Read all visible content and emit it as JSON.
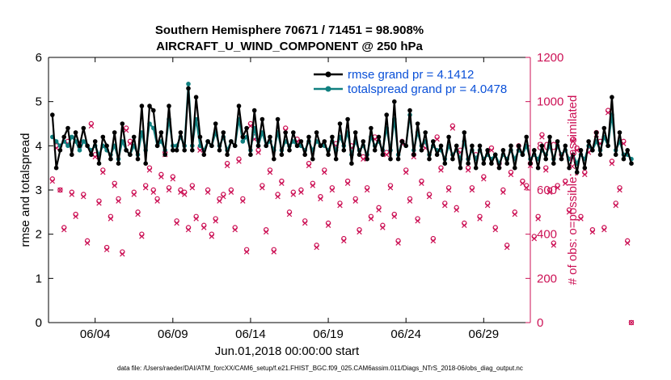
{
  "colors": {
    "rmse": "#000000",
    "totalspread": "#108080",
    "obs": "#cc1155",
    "legend_text": "#0a50d8",
    "axis": "#000000"
  },
  "chart_data": {
    "type": "line",
    "title": "Southern Hemisphere 70671 / 71451 = 98.908%",
    "subtitle": "AIRCRAFT_U_WIND_COMPONENT @ 250 hPa",
    "xlabel": "Jun.01,2018 00:00:00 start",
    "ylabel": "rmse and totalspread",
    "y2label": "# of obs: o=possible; ×=assimilated",
    "xlim": [
      1,
      32
    ],
    "ylim": [
      0,
      6
    ],
    "y2lim": [
      0,
      1200
    ],
    "xticks": [
      4,
      9,
      14,
      19,
      24,
      29
    ],
    "xtick_labels": [
      "06/04",
      "06/09",
      "06/14",
      "06/19",
      "06/24",
      "06/29"
    ],
    "yticks": [
      "0",
      "1",
      "2",
      "3",
      "4",
      "5",
      "6"
    ],
    "y2ticks": [
      "0",
      "200",
      "400",
      "600",
      "800",
      "1000",
      "1200"
    ],
    "grid": false,
    "legend_location": "top-right",
    "footer": "data file: /Users/raeder/DAI/ATM_forcXX/CAM6_setup/f.e21.FHIST_BGC.f09_025.CAM6assim.011/Diags_NTrS_2018-06/obs_diag_output.nc",
    "series": [
      {
        "name": "rmse grand pr = 4.1412",
        "x_start": 1.25,
        "x_step": 0.25,
        "values": [
          4.7,
          3.5,
          3.9,
          4.2,
          4.4,
          3.8,
          4.3,
          4.0,
          4.4,
          4.0,
          3.8,
          4.1,
          3.6,
          4.2,
          4.0,
          3.7,
          4.3,
          3.6,
          4.5,
          3.9,
          3.8,
          4.2,
          3.7,
          4.9,
          3.6,
          4.9,
          4.8,
          4.0,
          4.3,
          3.8,
          4.9,
          3.9,
          3.9,
          4.3,
          3.9,
          5.3,
          3.9,
          5.1,
          4.2,
          3.8,
          4.1,
          4.0,
          4.5,
          3.9,
          4.3,
          3.8,
          4.1,
          4.0,
          4.9,
          4.2,
          4.4,
          3.8,
          4.8,
          4.0,
          4.6,
          4.0,
          4.2,
          3.7,
          4.6,
          3.8,
          4.3,
          3.9,
          4.3,
          4.0,
          4.1,
          3.8,
          4.2,
          3.7,
          4.3,
          4.0,
          4.1,
          3.8,
          4.2,
          3.7,
          4.5,
          3.9,
          4.6,
          3.6,
          4.3,
          3.8,
          4.1,
          3.7,
          4.4,
          3.9,
          4.2,
          3.8,
          4.7,
          3.7,
          5.0,
          3.7,
          4.1,
          4.0,
          4.8,
          3.8,
          4.5,
          3.9,
          4.3,
          3.7,
          4.1,
          3.8,
          4.0,
          3.6,
          4.2,
          3.7,
          4.0,
          3.5,
          4.3,
          3.6,
          4.0,
          3.5,
          4.0,
          3.6,
          3.9,
          3.6,
          3.8,
          3.5,
          3.9,
          3.6,
          4.0,
          3.5,
          4.0,
          3.8,
          4.2,
          3.6,
          3.9,
          3.5,
          4.0,
          3.7,
          4.2,
          3.6,
          4.1,
          3.7,
          4.0,
          3.5,
          3.8,
          3.4,
          3.9,
          3.5,
          4.1,
          3.9,
          4.3,
          3.8,
          4.4,
          4.0,
          5.1,
          3.8,
          4.3,
          3.7,
          3.9,
          3.6
        ]
      },
      {
        "name": "totalspread grand pr = 4.0478",
        "x_start": 1.25,
        "x_step": 0.25,
        "values": [
          4.2,
          4.1,
          4.0,
          4.1,
          4.0,
          4.2,
          4.1,
          3.9,
          4.1,
          4.0,
          3.9,
          4.0,
          3.8,
          4.0,
          3.9,
          3.8,
          4.0,
          3.7,
          4.1,
          3.9,
          3.8,
          4.0,
          3.8,
          4.3,
          3.9,
          4.5,
          4.4,
          4.0,
          4.1,
          3.9,
          4.6,
          4.0,
          4.0,
          4.2,
          4.0,
          5.4,
          4.0,
          4.6,
          4.0,
          3.9,
          4.1,
          4.0,
          4.3,
          4.0,
          4.2,
          3.9,
          4.1,
          4.0,
          4.6,
          4.1,
          4.2,
          3.9,
          4.4,
          4.0,
          4.3,
          4.0,
          4.1,
          3.9,
          4.3,
          3.9,
          4.1,
          4.0,
          4.1,
          4.0,
          4.0,
          3.9,
          4.1,
          3.9,
          4.1,
          4.0,
          4.0,
          3.9,
          4.1,
          3.9,
          4.2,
          4.0,
          4.3,
          3.8,
          4.1,
          3.9,
          4.0,
          3.8,
          4.2,
          4.0,
          4.1,
          3.9,
          4.4,
          3.9,
          4.6,
          3.8,
          4.1,
          4.0,
          4.7,
          3.9,
          4.3,
          4.0,
          4.1,
          3.8,
          4.0,
          3.9,
          3.9,
          3.7,
          4.0,
          3.8,
          3.9,
          3.7,
          4.1,
          3.7,
          3.9,
          3.7,
          3.9,
          3.7,
          3.8,
          3.7,
          3.8,
          3.6,
          3.8,
          3.7,
          3.9,
          3.7,
          3.9,
          3.8,
          4.0,
          3.7,
          3.8,
          3.7,
          3.9,
          3.8,
          4.0,
          3.7,
          4.0,
          3.8,
          3.9,
          3.7,
          3.8,
          3.6,
          3.8,
          3.7,
          4.0,
          3.9,
          4.1,
          3.9,
          4.2,
          4.0,
          4.7,
          3.9,
          4.1,
          3.8,
          3.8,
          3.7
        ]
      },
      {
        "name": "obs possible",
        "axis": "y2",
        "x_start": 1.25,
        "x_step": 0.25,
        "values": [
          650,
          800,
          600,
          430,
          820,
          590,
          490,
          810,
          580,
          370,
          900,
          760,
          550,
          690,
          340,
          480,
          630,
          560,
          320,
          880,
          820,
          590,
          500,
          400,
          620,
          700,
          600,
          560,
          670,
          770,
          610,
          660,
          460,
          600,
          590,
          430,
          620,
          480,
          790,
          440,
          600,
          400,
          470,
          560,
          580,
          720,
          600,
          430,
          740,
          560,
          330,
          900,
          840,
          780,
          620,
          420,
          690,
          330,
          580,
          640,
          880,
          500,
          590,
          830,
          600,
          460,
          720,
          630,
          350,
          570,
          690,
          450,
          610,
          810,
          540,
          380,
          640,
          800,
          560,
          420,
          750,
          610,
          480,
          840,
          520,
          440,
          770,
          620,
          490,
          370,
          820,
          690,
          560,
          760,
          470,
          640,
          800,
          580,
          380,
          840,
          700,
          540,
          610,
          890,
          520,
          780,
          450,
          700,
          610,
          760,
          480,
          660,
          540,
          790,
          430,
          720,
          600,
          350,
          680,
          500,
          800,
          640,
          620,
          720,
          390,
          480,
          850,
          700,
          600,
          360,
          620,
          760,
          640,
          510,
          830,
          790,
          480,
          680,
          780,
          420,
          860,
          820,
          430,
          960,
          730,
          540,
          610,
          820,
          370,
          0
        ]
      },
      {
        "name": "obs assimilated",
        "axis": "y2",
        "x_start": 1.25,
        "x_step": 0.25,
        "values": [
          640,
          790,
          600,
          420,
          810,
          580,
          480,
          800,
          570,
          360,
          890,
          750,
          540,
          680,
          330,
          470,
          620,
          550,
          310,
          870,
          810,
          580,
          490,
          390,
          610,
          690,
          590,
          550,
          660,
          760,
          600,
          650,
          450,
          590,
          580,
          420,
          610,
          470,
          780,
          430,
          590,
          390,
          460,
          550,
          570,
          710,
          590,
          420,
          730,
          550,
          320,
          890,
          830,
          770,
          610,
          410,
          680,
          320,
          570,
          630,
          870,
          490,
          580,
          820,
          590,
          450,
          710,
          620,
          340,
          560,
          680,
          440,
          600,
          800,
          530,
          370,
          630,
          790,
          550,
          410,
          740,
          600,
          470,
          830,
          510,
          430,
          760,
          610,
          480,
          360,
          810,
          680,
          550,
          750,
          460,
          630,
          790,
          570,
          370,
          830,
          690,
          530,
          600,
          880,
          510,
          770,
          440,
          690,
          600,
          750,
          470,
          650,
          530,
          780,
          420,
          710,
          590,
          340,
          670,
          490,
          790,
          630,
          610,
          710,
          380,
          470,
          840,
          690,
          590,
          350,
          610,
          750,
          630,
          500,
          820,
          780,
          470,
          670,
          770,
          410,
          850,
          810,
          420,
          950,
          720,
          530,
          600,
          810,
          360,
          0
        ]
      }
    ]
  }
}
